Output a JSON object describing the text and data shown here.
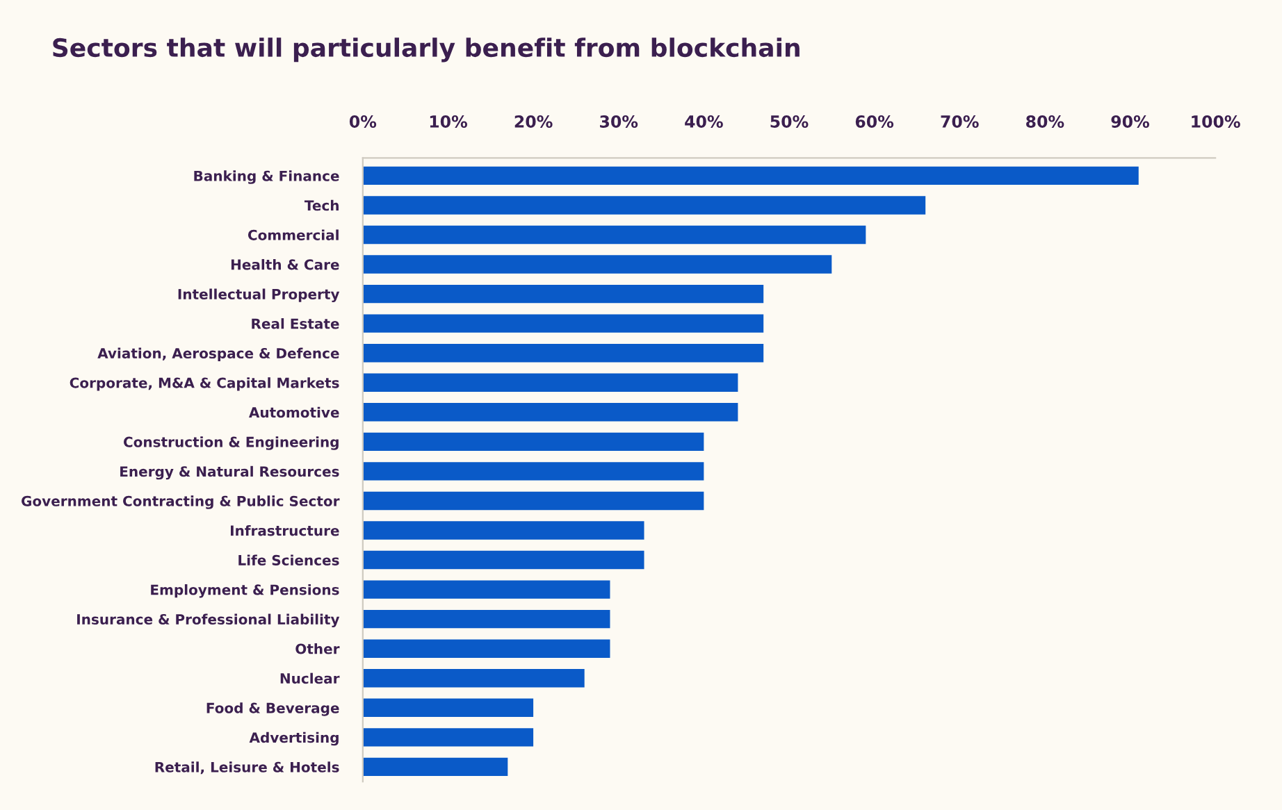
{
  "chart_data": {
    "type": "bar",
    "orientation": "horizontal",
    "title": "Sectors that will particularly benefit from blockchain",
    "categories": [
      "Banking & Finance",
      "Tech",
      "Commercial",
      "Health & Care",
      "Intellectual Property",
      "Real Estate",
      "Aviation, Aerospace & Defence",
      "Corporate, M&A & Capital Markets",
      "Automotive",
      "Construction & Engineering",
      "Energy & Natural Resources",
      "Government Contracting & Public Sector",
      "Infrastructure",
      "Life Sciences",
      "Employment & Pensions",
      "Insurance & Professional Liability",
      "Other",
      "Nuclear",
      "Food & Beverage",
      "Advertising",
      "Retail, Leisure & Hotels"
    ],
    "values": [
      91,
      66,
      59,
      55,
      47,
      47,
      47,
      44,
      44,
      40,
      40,
      40,
      33,
      33,
      29,
      29,
      29,
      26,
      20,
      20,
      17
    ],
    "color": "#0a5ac8",
    "xlim": [
      0,
      100
    ],
    "xticks": [
      {
        "value": 0,
        "label": "0%"
      },
      {
        "value": 10,
        "label": "10%"
      },
      {
        "value": 20,
        "label": "20%"
      },
      {
        "value": 30,
        "label": "30%"
      },
      {
        "value": 40,
        "label": "40%"
      },
      {
        "value": 50,
        "label": "50%"
      },
      {
        "value": 60,
        "label": "60%"
      },
      {
        "value": 70,
        "label": "70%"
      },
      {
        "value": 80,
        "label": "80%"
      },
      {
        "value": 90,
        "label": "90%"
      },
      {
        "value": 100,
        "label": "100%"
      }
    ],
    "grid": false
  }
}
